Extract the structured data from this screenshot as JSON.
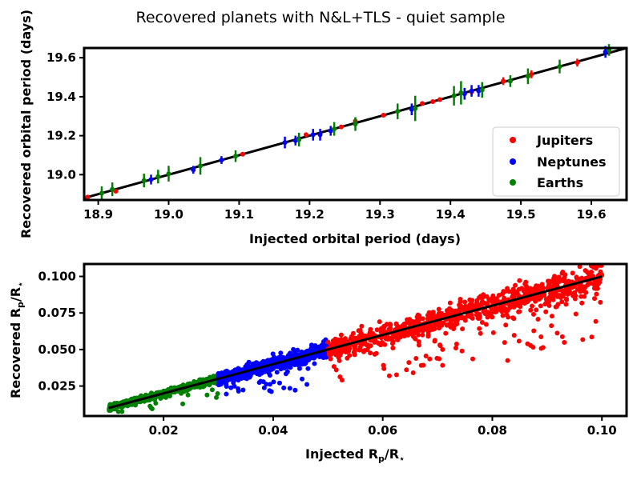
{
  "title": "Recovered planets with N&L+TLS - quiet sample",
  "colors": {
    "jupiters": "#ff0000",
    "neptunes": "#0000ff",
    "earths": "#008000",
    "line": "#000000"
  },
  "chart_data": [
    {
      "type": "scatter",
      "title": "Recovered planets with N&L+TLS - quiet sample",
      "xlabel": "Injected orbital period (days)",
      "ylabel": "Recovered orbital period (days)",
      "xlim": [
        18.88,
        19.65
      ],
      "ylim": [
        18.87,
        19.65
      ],
      "xticks": [
        "18.9",
        "19.0",
        "19.1",
        "19.2",
        "19.3",
        "19.4",
        "19.5",
        "19.6"
      ],
      "yticks": [
        "19.0",
        "19.2",
        "19.4",
        "19.6"
      ],
      "xtick_values": [
        18.9,
        19.0,
        19.1,
        19.2,
        19.3,
        19.4,
        19.5,
        19.6
      ],
      "ytick_values": [
        19.0,
        19.2,
        19.4,
        19.6
      ],
      "legend": [
        "Jupiters",
        "Neptunes",
        "Earths"
      ],
      "legend_position": "lower-right",
      "identity_line": true,
      "series": [
        {
          "name": "Jupiters",
          "points": [
            [
              18.925,
              18.915,
              0.01
            ],
            [
              19.105,
              19.105,
              0.01
            ],
            [
              19.195,
              19.205,
              0.01
            ],
            [
              19.245,
              19.245,
              0.01
            ],
            [
              19.265,
              19.275,
              0.01
            ],
            [
              19.305,
              19.305,
              0.01
            ],
            [
              19.36,
              19.365,
              0.01
            ],
            [
              19.375,
              19.375,
              0.01
            ],
            [
              19.385,
              19.385,
              0.01
            ],
            [
              19.43,
              19.425,
              0.015
            ],
            [
              19.475,
              19.48,
              0.02
            ],
            [
              19.515,
              19.515,
              0.02
            ],
            [
              19.58,
              19.575,
              0.02
            ],
            [
              19.625,
              19.635,
              0.02
            ],
            [
              18.885,
              18.885,
              0.01
            ]
          ]
        },
        {
          "name": "Neptunes",
          "points": [
            [
              18.975,
              18.975,
              0.025
            ],
            [
              19.035,
              19.025,
              0.02
            ],
            [
              19.075,
              19.075,
              0.02
            ],
            [
              19.165,
              19.165,
              0.03
            ],
            [
              19.18,
              19.175,
              0.025
            ],
            [
              19.205,
              19.205,
              0.03
            ],
            [
              19.215,
              19.205,
              0.03
            ],
            [
              19.23,
              19.225,
              0.025
            ],
            [
              19.345,
              19.335,
              0.03
            ],
            [
              19.42,
              19.415,
              0.03
            ],
            [
              19.43,
              19.43,
              0.03
            ],
            [
              19.44,
              19.43,
              0.03
            ],
            [
              19.62,
              19.63,
              0.03
            ],
            [
              19.185,
              19.185,
              0.02
            ]
          ]
        },
        {
          "name": "Earths",
          "points": [
            [
              18.905,
              18.905,
              0.035
            ],
            [
              18.92,
              18.925,
              0.035
            ],
            [
              18.965,
              18.97,
              0.035
            ],
            [
              18.985,
              18.99,
              0.035
            ],
            [
              19.0,
              19.005,
              0.04
            ],
            [
              19.045,
              19.045,
              0.045
            ],
            [
              19.095,
              19.095,
              0.03
            ],
            [
              19.185,
              19.18,
              0.035
            ],
            [
              19.235,
              19.235,
              0.035
            ],
            [
              19.265,
              19.26,
              0.035
            ],
            [
              19.325,
              19.325,
              0.04
            ],
            [
              19.35,
              19.34,
              0.065
            ],
            [
              19.405,
              19.405,
              0.05
            ],
            [
              19.415,
              19.42,
              0.06
            ],
            [
              19.445,
              19.435,
              0.04
            ],
            [
              19.485,
              19.48,
              0.03
            ],
            [
              19.51,
              19.505,
              0.04
            ],
            [
              19.555,
              19.555,
              0.035
            ],
            [
              19.625,
              19.64,
              0.03
            ]
          ]
        }
      ]
    },
    {
      "type": "scatter",
      "xlabel": "Injected Rp/R⋆",
      "ylabel": "Recovered Rp/R⋆",
      "xlim": [
        0.0055,
        0.1045
      ],
      "ylim": [
        0.0045,
        0.1085
      ],
      "xticks": [
        "0.02",
        "0.04",
        "0.06",
        "0.08",
        "0.10"
      ],
      "yticks": [
        "0.025",
        "0.050",
        "0.075",
        "0.100"
      ],
      "xtick_values": [
        0.02,
        0.04,
        0.06,
        0.08,
        0.1
      ],
      "ytick_values": [
        0.025,
        0.05,
        0.075,
        0.1
      ],
      "identity_line": [
        0.01,
        0.1
      ],
      "series": [
        {
          "name": "Earths",
          "x_range": [
            0.01,
            0.03
          ],
          "n_points": 700,
          "scatter": 0.0022,
          "outlier_fraction": 0.03
        },
        {
          "name": "Neptunes",
          "x_range": [
            0.03,
            0.05
          ],
          "n_points": 700,
          "scatter": 0.0035,
          "outlier_fraction": 0.06
        },
        {
          "name": "Jupiters",
          "x_range": [
            0.05,
            0.1
          ],
          "n_points": 900,
          "scatter": 0.005,
          "outlier_fraction": 0.1
        }
      ]
    }
  ]
}
